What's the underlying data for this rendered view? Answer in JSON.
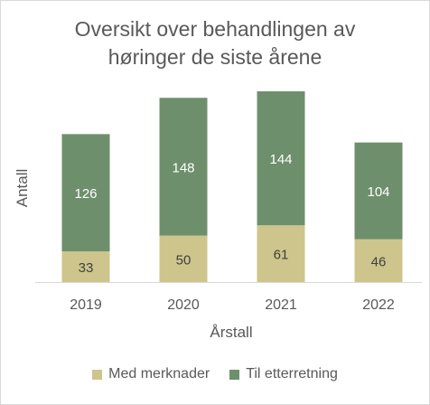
{
  "chart_data": {
    "type": "bar",
    "stacked": true,
    "title_lines": [
      "Oversikt over behandlingen av",
      "høringer de siste årene"
    ],
    "xlabel": "Årstall",
    "ylabel": "Antall",
    "categories": [
      "2019",
      "2020",
      "2021",
      "2022"
    ],
    "series": [
      {
        "name": "Med merknader",
        "color": "#cdc58b",
        "values": [
          33,
          50,
          61,
          46
        ]
      },
      {
        "name": "Til etterretning",
        "color": "#6e8f6c",
        "values": [
          126,
          148,
          144,
          104
        ]
      }
    ],
    "ylim": [
      0,
      205
    ],
    "grid": false,
    "legend_position": "bottom",
    "data_labels": true
  }
}
